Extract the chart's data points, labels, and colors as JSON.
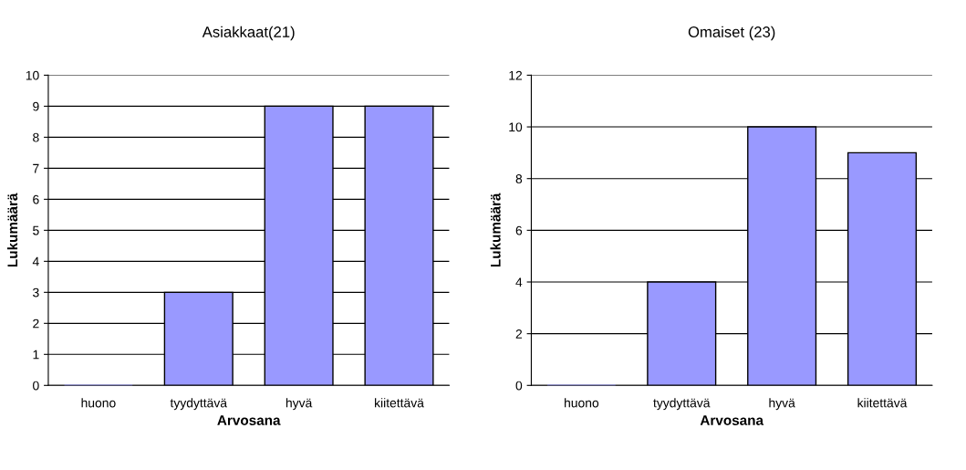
{
  "chart_data": [
    {
      "type": "bar",
      "title": "Asiakkaat(21)",
      "xlabel": "Arvosana",
      "ylabel": "Lukumäärä",
      "categories": [
        "huono",
        "tyydyttävä",
        "hyvä",
        "kiitettävä"
      ],
      "values": [
        0,
        3,
        9,
        9
      ],
      "color": "#9999ff",
      "ylim": [
        0,
        10
      ],
      "yticks": [
        0,
        1,
        2,
        3,
        4,
        5,
        6,
        7,
        8,
        9,
        10
      ],
      "grid": "y",
      "legend": false
    },
    {
      "type": "bar",
      "title": "Omaiset (23)",
      "xlabel": "Arvosana",
      "ylabel": "Lukumäärä",
      "categories": [
        "huono",
        "tyydyttävä",
        "hyvä",
        "kiitettävä"
      ],
      "values": [
        0,
        4,
        10,
        9
      ],
      "color": "#9999ff",
      "ylim": [
        0,
        12
      ],
      "yticks": [
        0,
        2,
        4,
        6,
        8,
        10,
        12
      ],
      "grid": "y",
      "legend": false
    }
  ]
}
